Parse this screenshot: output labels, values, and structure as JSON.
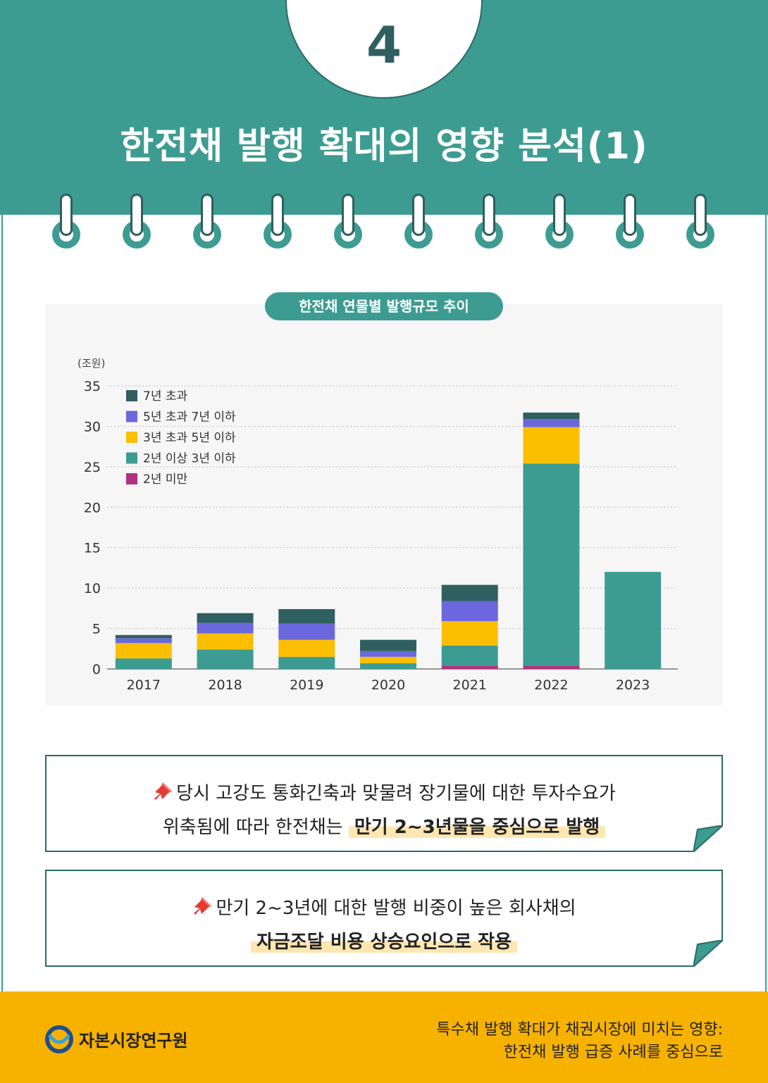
{
  "header": {
    "number": "4",
    "title": "한전채 발행 확대의 영향 분석(1)"
  },
  "colors": {
    "teal": "#3d9c91",
    "dark_teal": "#2f5f5f",
    "footer": "#f7b200",
    "highlight": "#fde6b0"
  },
  "chart_title": "한전채 연물별 발행규모 추이",
  "chart_data": {
    "type": "bar",
    "stacked": true,
    "unit_label": "(조원)",
    "categories": [
      "2017",
      "2018",
      "2019",
      "2020",
      "2021",
      "2022",
      "2023"
    ],
    "ylim": [
      0,
      35
    ],
    "yticks": [
      0,
      5,
      10,
      15,
      20,
      25,
      30,
      35
    ],
    "grid": true,
    "legend_position": "top-left",
    "series": [
      {
        "name": "2년 미만",
        "color": "#b0327f",
        "values": [
          0,
          0,
          0,
          0,
          0.4,
          0.4,
          0
        ]
      },
      {
        "name": "2년 이상 3년 이하",
        "color": "#3d9c91",
        "values": [
          1.3,
          2.4,
          1.5,
          0.7,
          2.5,
          25.0,
          12.0
        ]
      },
      {
        "name": "3년 초과 5년 이하",
        "color": "#fbbf00",
        "values": [
          1.9,
          2.0,
          2.1,
          0.8,
          3.0,
          4.5,
          0
        ]
      },
      {
        "name": "5년 초과 7년 이하",
        "color": "#6b68dd",
        "values": [
          0.6,
          1.3,
          2.0,
          0.7,
          2.5,
          1.0,
          0
        ]
      },
      {
        "name": "7년 초과",
        "color": "#2f5f5f",
        "values": [
          0.4,
          1.2,
          1.8,
          1.4,
          2.0,
          0.8,
          0
        ]
      }
    ]
  },
  "notes": [
    {
      "line1": "당시 고강도 통화긴축과 맞물려 장기물에 대한 투자수요가",
      "line2_plain": "위축됨에 따라 한전채는 ",
      "line2_highlight": "만기 2~3년물을 중심으로 발행"
    },
    {
      "line1": "만기 2~3년에 대한 발행 비중이 높은 회사채의",
      "line2_plain": "",
      "line2_highlight": "자금조달 비용 상승요인으로 작용"
    }
  ],
  "footer": {
    "org": "자본시장연구원",
    "line1": "특수채 발행 확대가  채권시장에 미치는 영향:",
    "line2": "한전채 발행 급증 사례를 중심으로"
  }
}
